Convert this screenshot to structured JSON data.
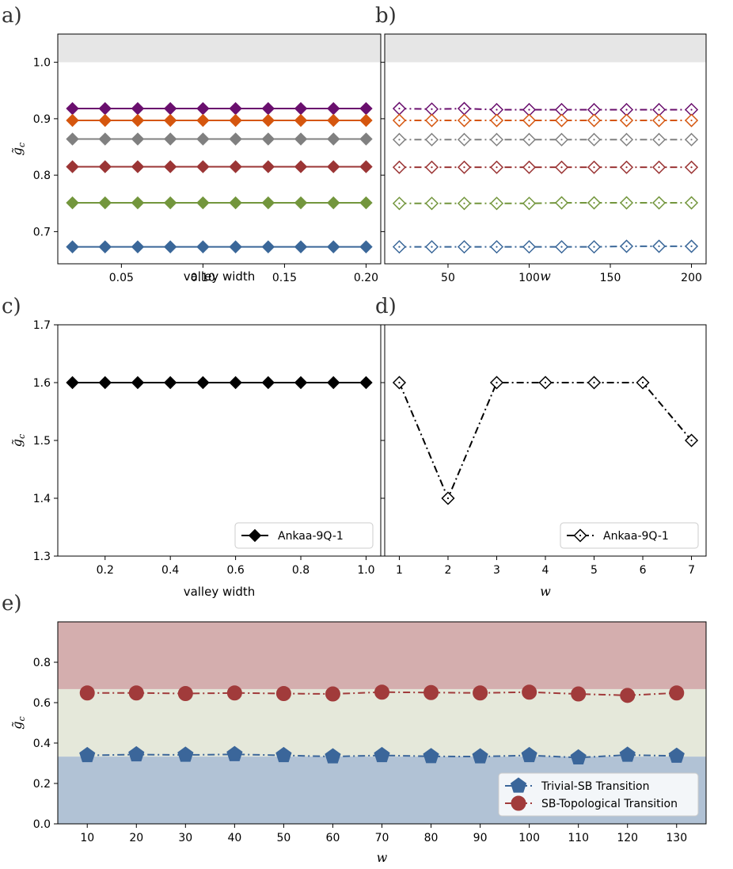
{
  "colors": {
    "purple": "#6a0f6e",
    "orange": "#d5560e",
    "gray": "#808080",
    "red": "#9b3535",
    "green": "#73963d",
    "blue": "#3a6799",
    "black": "#000000",
    "band_gray": "#e6e6e6",
    "band_red": "#d4aeae",
    "band_green": "#e5e8da",
    "band_blue": "#b1c2d5",
    "e_blue": "#3b669a",
    "e_red": "#a13b3b"
  },
  "ylabel_math": "g̃",
  "ylabel_sub": "c",
  "chart_data": [
    {
      "panel": "a)",
      "type": "line",
      "xlabel": "valley width",
      "xlim": [
        0.011,
        0.209
      ],
      "ylim": [
        0.643,
        1.05
      ],
      "xticks": [
        0.05,
        0.1,
        0.15,
        0.2
      ],
      "xtick_labels": [
        "0.05",
        "0.10",
        "0.15",
        "0.20"
      ],
      "yticks": [
        0.7,
        0.8,
        0.9,
        1.0
      ],
      "ytick_labels": [
        "0.7",
        "0.8",
        "0.9",
        "1.0"
      ],
      "band": {
        "from": 1.0,
        "to": 1.05,
        "color_key": "band_gray"
      },
      "x": [
        0.02,
        0.04,
        0.06,
        0.08,
        0.1,
        0.12,
        0.14,
        0.16,
        0.18,
        0.2
      ],
      "marker": "filled-diamond",
      "linestyle": "solid",
      "series": [
        {
          "color_key": "purple",
          "values": [
            0.918,
            0.918,
            0.918,
            0.918,
            0.918,
            0.918,
            0.918,
            0.918,
            0.918,
            0.918
          ]
        },
        {
          "color_key": "orange",
          "values": [
            0.897,
            0.897,
            0.897,
            0.897,
            0.897,
            0.897,
            0.897,
            0.897,
            0.897,
            0.897
          ]
        },
        {
          "color_key": "gray",
          "values": [
            0.864,
            0.864,
            0.864,
            0.864,
            0.864,
            0.864,
            0.864,
            0.864,
            0.864,
            0.864
          ]
        },
        {
          "color_key": "red",
          "values": [
            0.815,
            0.815,
            0.815,
            0.815,
            0.815,
            0.815,
            0.815,
            0.815,
            0.815,
            0.815
          ]
        },
        {
          "color_key": "green",
          "values": [
            0.751,
            0.751,
            0.751,
            0.751,
            0.751,
            0.751,
            0.751,
            0.751,
            0.751,
            0.751
          ]
        },
        {
          "color_key": "blue",
          "values": [
            0.673,
            0.673,
            0.673,
            0.673,
            0.673,
            0.673,
            0.673,
            0.673,
            0.673,
            0.673
          ]
        }
      ]
    },
    {
      "panel": "b)",
      "type": "line",
      "xlabel": "w",
      "xlim": [
        11,
        209
      ],
      "ylim": [
        0.643,
        1.05
      ],
      "xticks": [
        50,
        100,
        150,
        200
      ],
      "xtick_labels": [
        "50",
        "100",
        "150",
        "200"
      ],
      "yticks": [
        0.7,
        0.8,
        0.9,
        1.0
      ],
      "ytick_labels": [],
      "band": {
        "from": 1.0,
        "to": 1.05,
        "color_key": "band_gray"
      },
      "x": [
        20,
        40,
        60,
        80,
        100,
        120,
        140,
        160,
        180,
        200
      ],
      "marker": "open-diamond",
      "linestyle": "dashdot",
      "series": [
        {
          "color_key": "purple",
          "values": [
            0.918,
            0.917,
            0.918,
            0.916,
            0.916,
            0.916,
            0.916,
            0.916,
            0.916,
            0.916
          ]
        },
        {
          "color_key": "orange",
          "values": [
            0.897,
            0.897,
            0.897,
            0.897,
            0.897,
            0.897,
            0.897,
            0.897,
            0.897,
            0.897
          ]
        },
        {
          "color_key": "gray",
          "values": [
            0.863,
            0.863,
            0.863,
            0.863,
            0.863,
            0.863,
            0.863,
            0.863,
            0.863,
            0.863
          ]
        },
        {
          "color_key": "red",
          "values": [
            0.814,
            0.814,
            0.814,
            0.814,
            0.814,
            0.814,
            0.814,
            0.814,
            0.814,
            0.814
          ]
        },
        {
          "color_key": "green",
          "values": [
            0.75,
            0.75,
            0.75,
            0.75,
            0.75,
            0.751,
            0.751,
            0.751,
            0.751,
            0.751
          ]
        },
        {
          "color_key": "blue",
          "values": [
            0.673,
            0.673,
            0.673,
            0.673,
            0.673,
            0.673,
            0.673,
            0.674,
            0.674,
            0.674
          ]
        }
      ]
    },
    {
      "panel": "c)",
      "type": "line",
      "xlabel": "valley width",
      "xlim": [
        0.055,
        1.045
      ],
      "ylim": [
        1.3,
        1.7
      ],
      "xticks": [
        0.2,
        0.4,
        0.6,
        0.8,
        1.0
      ],
      "xtick_labels": [
        "0.2",
        "0.4",
        "0.6",
        "0.8",
        "1.0"
      ],
      "yticks": [
        1.3,
        1.4,
        1.5,
        1.6,
        1.7
      ],
      "ytick_labels": [
        "1.3",
        "1.4",
        "1.5",
        "1.6",
        "1.7"
      ],
      "x": [
        0.1,
        0.2,
        0.3,
        0.4,
        0.5,
        0.6,
        0.7,
        0.8,
        0.9,
        1.0
      ],
      "marker": "filled-diamond",
      "linestyle": "solid",
      "legend": {
        "entries": [
          "Ankaa-9Q-1"
        ],
        "placement": "bottom-right"
      },
      "series": [
        {
          "name": "Ankaa-9Q-1",
          "color_key": "black",
          "values": [
            1.6,
            1.6,
            1.6,
            1.6,
            1.6,
            1.6,
            1.6,
            1.6,
            1.6,
            1.6
          ]
        }
      ]
    },
    {
      "panel": "d)",
      "type": "line",
      "xlabel": "w",
      "xlim": [
        0.7,
        7.3
      ],
      "ylim": [
        1.3,
        1.7
      ],
      "xticks": [
        1,
        2,
        3,
        4,
        5,
        6,
        7
      ],
      "xtick_labels": [
        "1",
        "2",
        "3",
        "4",
        "5",
        "6",
        "7"
      ],
      "yticks": [
        1.3,
        1.4,
        1.5,
        1.6,
        1.7
      ],
      "ytick_labels": [],
      "x": [
        1,
        2,
        3,
        4,
        5,
        6,
        7
      ],
      "marker": "open-diamond",
      "linestyle": "dashdot",
      "legend": {
        "entries": [
          "Ankaa-9Q-1"
        ],
        "placement": "bottom-right"
      },
      "series": [
        {
          "name": "Ankaa-9Q-1",
          "color_key": "black",
          "values": [
            1.6,
            1.4,
            1.6,
            1.6,
            1.6,
            1.6,
            1.5
          ]
        }
      ]
    },
    {
      "panel": "e)",
      "type": "line",
      "xlabel": "w",
      "xlim": [
        4,
        136
      ],
      "ylim": [
        0.0,
        1.0
      ],
      "xticks": [
        10,
        20,
        30,
        40,
        50,
        60,
        70,
        80,
        90,
        100,
        110,
        120,
        130
      ],
      "xtick_labels": [
        "10",
        "20",
        "30",
        "40",
        "50",
        "60",
        "70",
        "80",
        "90",
        "100",
        "110",
        "120",
        "130"
      ],
      "yticks": [
        0.0,
        0.2,
        0.4,
        0.6,
        0.8
      ],
      "ytick_labels": [
        "0.0",
        "0.2",
        "0.4",
        "0.6",
        "0.8"
      ],
      "bands": [
        {
          "from": 0.0,
          "to": 0.333,
          "color_key": "band_blue"
        },
        {
          "from": 0.333,
          "to": 0.667,
          "color_key": "band_green"
        },
        {
          "from": 0.667,
          "to": 1.0,
          "color_key": "band_red"
        }
      ],
      "x": [
        10,
        20,
        30,
        40,
        50,
        60,
        70,
        80,
        90,
        100,
        110,
        120,
        130
      ],
      "linestyle": "dashdot",
      "legend": {
        "entries": [
          "Trivial-SB Transition",
          "SB-Topological Transition"
        ],
        "placement": "bottom-right"
      },
      "series": [
        {
          "name": "Trivial-SB Transition",
          "marker": "pentagon",
          "color_key": "e_blue",
          "values": [
            0.339,
            0.343,
            0.341,
            0.344,
            0.339,
            0.333,
            0.339,
            0.334,
            0.333,
            0.339,
            0.328,
            0.341,
            0.336
          ]
        },
        {
          "name": "SB-Topological Transition",
          "marker": "circle",
          "color_key": "e_red",
          "values": [
            0.648,
            0.648,
            0.645,
            0.648,
            0.645,
            0.643,
            0.652,
            0.65,
            0.648,
            0.652,
            0.643,
            0.636,
            0.648
          ]
        }
      ]
    }
  ]
}
